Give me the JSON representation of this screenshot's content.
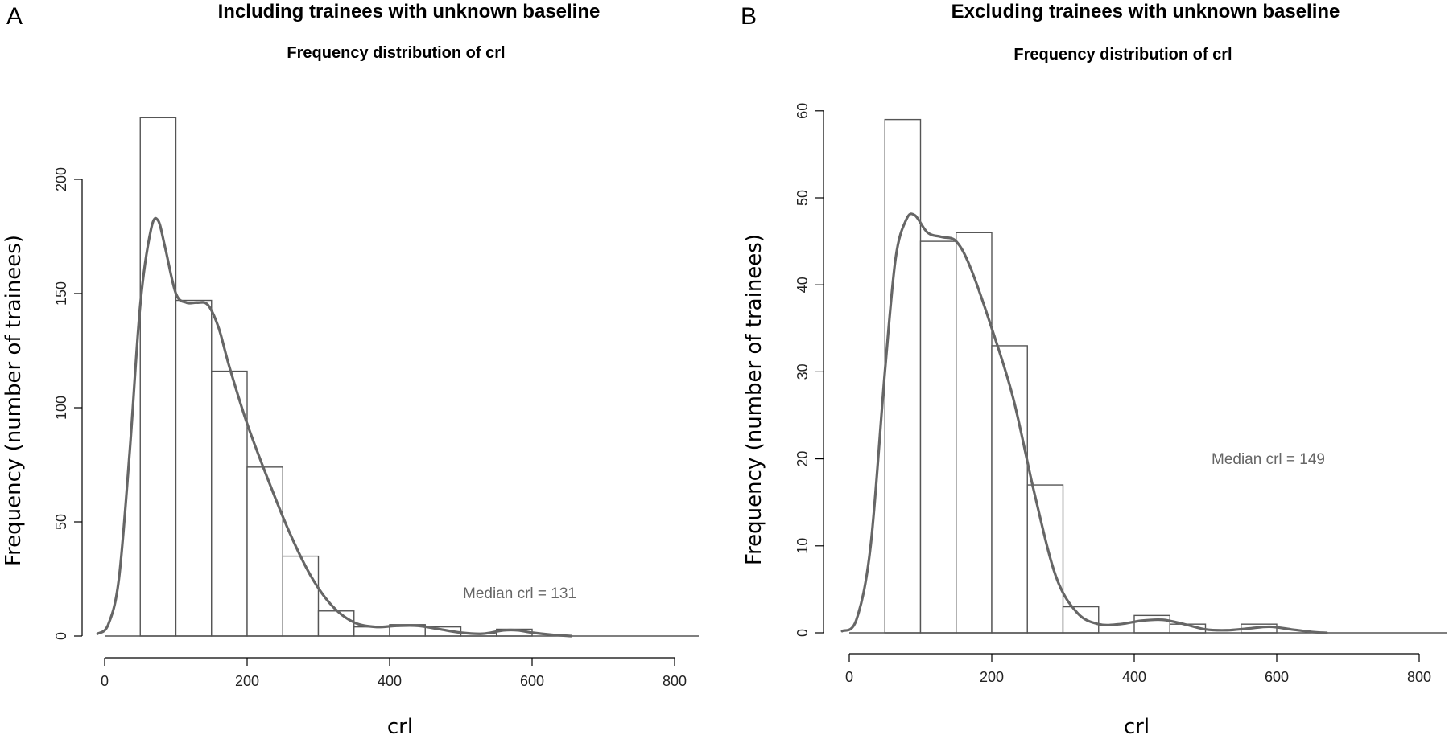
{
  "panels": [
    {
      "letter": "A",
      "heading": "Including trainees with unknown baseline"
    },
    {
      "letter": "B",
      "heading": "Excluding trainees with unknown baseline"
    }
  ],
  "chart_data": [
    {
      "type": "bar",
      "subtype": "histogram with density curve",
      "title": "Frequency distribution of crl",
      "xlabel": "crl",
      "ylabel": "Frequency (number of trainees)",
      "xlim": [
        0,
        800
      ],
      "ylim": [
        0,
        200
      ],
      "x_ticks": [
        0,
        200,
        400,
        600,
        800
      ],
      "y_ticks": [
        0,
        50,
        100,
        150,
        200
      ],
      "bin_width": 50,
      "bin_starts": [
        50,
        100,
        150,
        200,
        250,
        300,
        350,
        400,
        450,
        500,
        550
      ],
      "values": [
        227,
        147,
        116,
        74,
        35,
        11,
        4,
        5,
        4,
        1,
        3
      ],
      "density_curve": {
        "x": [
          -10,
          5,
          20,
          35,
          50,
          65,
          75,
          85,
          100,
          115,
          130,
          145,
          160,
          175,
          200,
          230,
          260,
          290,
          320,
          350,
          380,
          410,
          440,
          470,
          500,
          530,
          560,
          580,
          600,
          630,
          655
        ],
        "y": [
          1,
          5,
          25,
          80,
          145,
          178,
          182,
          170,
          150,
          146,
          146,
          145,
          135,
          118,
          93,
          68,
          45,
          26,
          13,
          6,
          4,
          4.5,
          4.5,
          3,
          1.5,
          1,
          2.5,
          2.5,
          1.5,
          0.5,
          0
        ]
      },
      "annotation": "Median crl =  131",
      "grid": false
    },
    {
      "type": "bar",
      "subtype": "histogram with density curve",
      "title": "Frequency distribution of crl",
      "xlabel": "crl",
      "ylabel": "Frequency (number of trainees)",
      "xlim": [
        0,
        800
      ],
      "ylim": [
        0,
        60
      ],
      "x_ticks": [
        0,
        200,
        400,
        600,
        800
      ],
      "y_ticks": [
        0,
        10,
        20,
        30,
        40,
        50,
        60
      ],
      "bin_width": 50,
      "bin_starts": [
        50,
        100,
        150,
        200,
        250,
        300,
        350,
        400,
        450,
        500,
        550
      ],
      "values": [
        59,
        45,
        46,
        33,
        17,
        3,
        0,
        2,
        1,
        0,
        1
      ],
      "density_curve": {
        "x": [
          -10,
          10,
          30,
          50,
          65,
          80,
          92,
          110,
          130,
          150,
          170,
          200,
          230,
          260,
          290,
          320,
          350,
          380,
          410,
          440,
          470,
          500,
          530,
          560,
          590,
          620,
          650,
          670
        ],
        "y": [
          0.2,
          1.5,
          10,
          30,
          43,
          47.5,
          48,
          46,
          45.5,
          45,
          42,
          35,
          27,
          16,
          6.5,
          2.3,
          1,
          1,
          1.4,
          1.5,
          1,
          0.4,
          0.3,
          0.5,
          0.7,
          0.4,
          0.1,
          0
        ]
      },
      "annotation": "Median crl =  149",
      "grid": false
    }
  ]
}
